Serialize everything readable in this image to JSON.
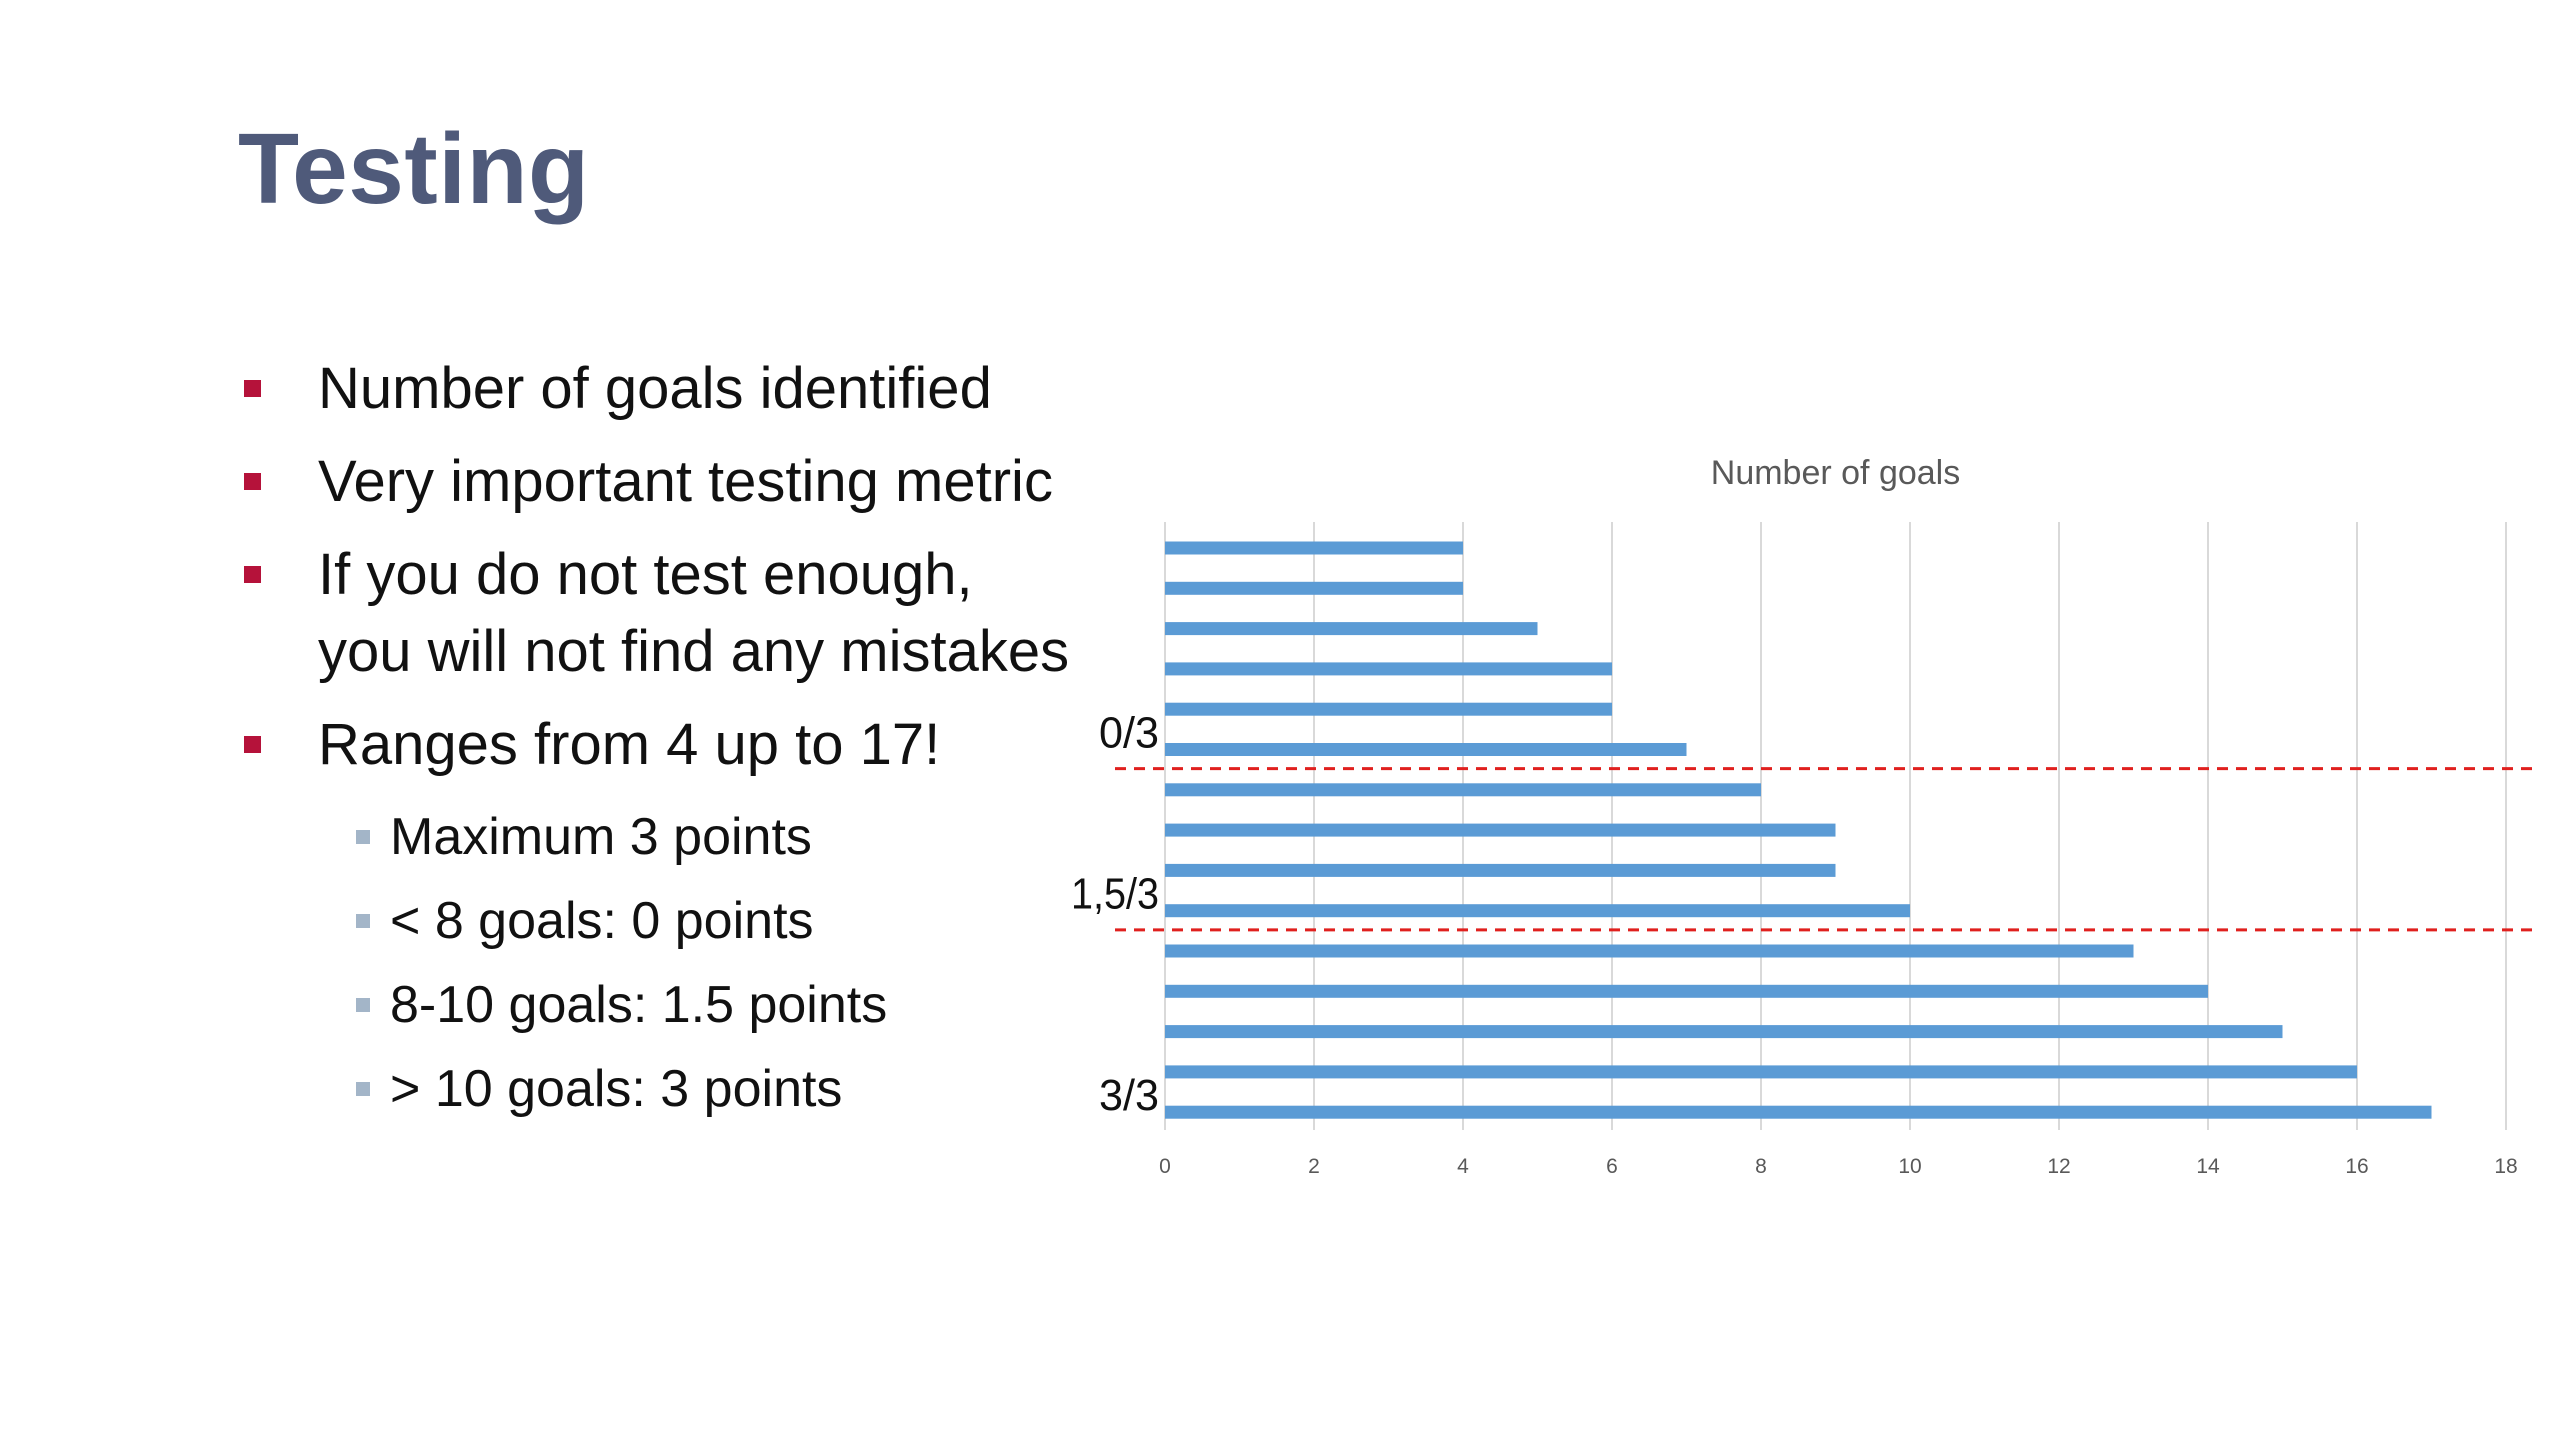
{
  "slide": {
    "title": "Testing",
    "bullets": [
      {
        "text": "Number of goals identified"
      },
      {
        "text": "Very important testing metric"
      },
      {
        "text": "If you do not test enough, you will not find any mistakes"
      },
      {
        "text": "Ranges from 4 up to 17!"
      }
    ],
    "sub_bullets": [
      {
        "text": "Maximum 3 points"
      },
      {
        "text": "< 8 goals: 0 points"
      },
      {
        "text": "8-10 goals: 1.5 points"
      },
      {
        "text": "> 10 goals: 3 points"
      }
    ]
  },
  "colors": {
    "title": "#4f5a7a",
    "bullet_marker": "#b5123a",
    "sub_bullet_marker": "#a3b5c8",
    "bar": "#5b9bd5",
    "threshold_line": "#e0201e",
    "gridline": "#d9d9d9"
  },
  "chart_data": {
    "type": "bar",
    "orientation": "horizontal",
    "title": "Number of goals",
    "xlabel": "",
    "ylabel": "",
    "xlim": [
      0,
      18
    ],
    "x_ticks": [
      "0",
      "2",
      "4",
      "6",
      "8",
      "10",
      "12",
      "14",
      "16",
      "18"
    ],
    "grid": true,
    "legend": "none",
    "values": [
      4,
      4,
      5,
      6,
      6,
      7,
      8,
      9,
      9,
      10,
      13,
      14,
      15,
      16,
      17
    ],
    "category_labels": [
      "0/3",
      "1,5/3",
      "3/3"
    ],
    "annotations": [
      {
        "text": "0/3",
        "below_bar_index": 5
      },
      {
        "text": "1,5/3",
        "below_bar_index": 9
      },
      {
        "text": "3/3",
        "below_bar_index": 14
      }
    ],
    "threshold_after_bar_index": [
      5,
      9
    ]
  }
}
